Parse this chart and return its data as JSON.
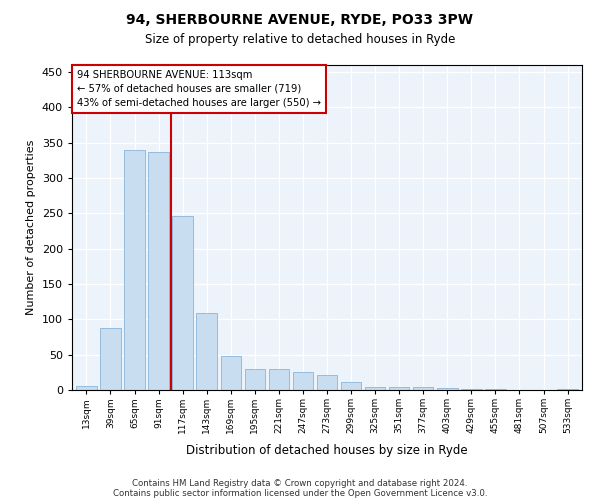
{
  "title1": "94, SHERBOURNE AVENUE, RYDE, PO33 3PW",
  "title2": "Size of property relative to detached houses in Ryde",
  "xlabel": "Distribution of detached houses by size in Ryde",
  "ylabel": "Number of detached properties",
  "bar_color": "#c8ddf0",
  "bar_edge_color": "#8ab4d8",
  "background_color": "#edf3fb",
  "property_line_x": 4,
  "property_line_color": "#cc0000",
  "annotation_line1": "94 SHERBOURNE AVENUE: 113sqm",
  "annotation_line2": "← 57% of detached houses are smaller (719)",
  "annotation_line3": "43% of semi-detached houses are larger (550) →",
  "footnote1": "Contains HM Land Registry data © Crown copyright and database right 2024.",
  "footnote2": "Contains public sector information licensed under the Open Government Licence v3.0.",
  "bin_labels": [
    "13sqm",
    "39sqm",
    "65sqm",
    "91sqm",
    "117sqm",
    "143sqm",
    "169sqm",
    "195sqm",
    "221sqm",
    "247sqm",
    "273sqm",
    "299sqm",
    "325sqm",
    "351sqm",
    "377sqm",
    "403sqm",
    "429sqm",
    "455sqm",
    "481sqm",
    "507sqm",
    "533sqm"
  ],
  "bar_heights": [
    5,
    88,
    340,
    337,
    246,
    109,
    48,
    30,
    30,
    25,
    21,
    11,
    4,
    4,
    4,
    3,
    1,
    1,
    0,
    0,
    1
  ],
  "ylim": [
    0,
    460
  ],
  "yticks": [
    0,
    50,
    100,
    150,
    200,
    250,
    300,
    350,
    400,
    450
  ],
  "n_bars": 21
}
